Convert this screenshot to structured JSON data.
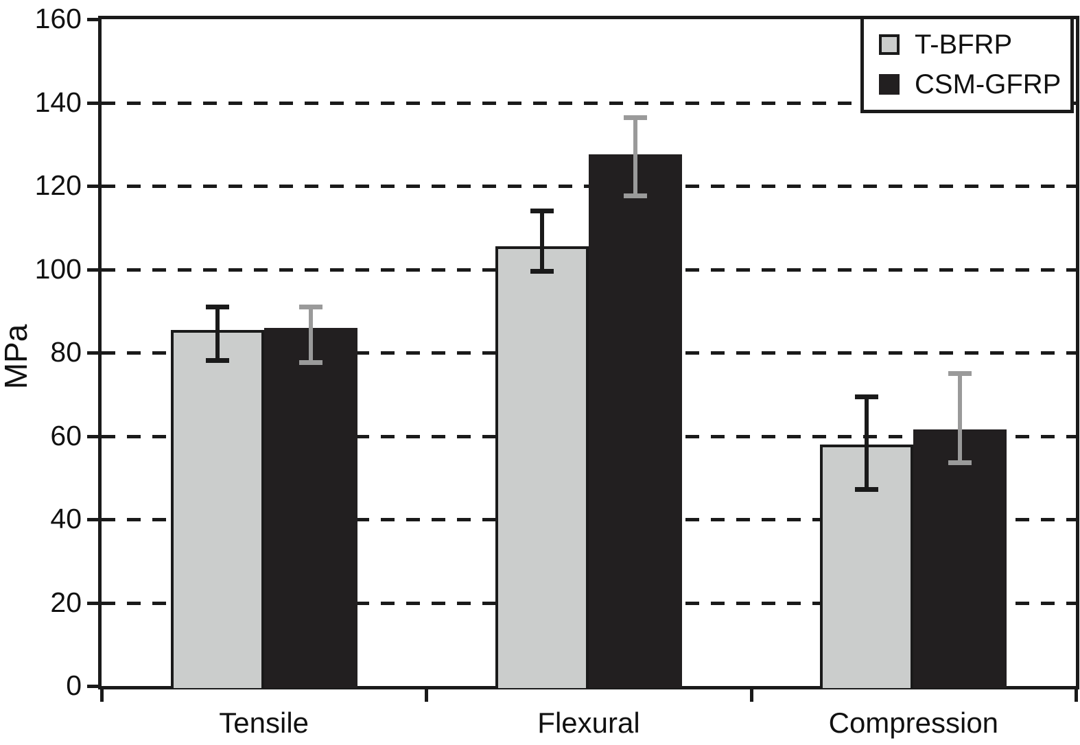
{
  "chart_data": {
    "type": "bar",
    "title": "",
    "xlabel": "",
    "ylabel": "MPa",
    "ylim": [
      0,
      160
    ],
    "yticks": [
      0,
      20,
      40,
      60,
      80,
      100,
      120,
      140,
      160
    ],
    "grid": "horizontal dashed black lines at every 20 MPa",
    "legend_position": "top-right inside plot, boxed",
    "categories": [
      "Tensile",
      "Flexural",
      "Compression"
    ],
    "series": [
      {
        "name": "T-BFRP",
        "fill_color": "#cbcdcc",
        "border_color": "#1a1a1a",
        "error_bar_color": "#1a1a1a",
        "values": [
          85.5,
          105.5,
          58
        ],
        "error_low": [
          78,
          99.5,
          47
        ],
        "error_high": [
          91,
          114,
          69.5
        ]
      },
      {
        "name": "CSM-GFRP",
        "fill_color": "#221f20",
        "border_color": "#221f20",
        "error_bar_color": "#9a9a9a",
        "values": [
          86,
          127.5,
          61.5
        ],
        "error_low": [
          77.5,
          117.5,
          53.5
        ],
        "error_high": [
          91,
          136.5,
          75
        ]
      }
    ],
    "colors": {
      "axis": "#1a1a1a",
      "gridline": "#1a1a1a",
      "background": "#ffffff"
    }
  }
}
